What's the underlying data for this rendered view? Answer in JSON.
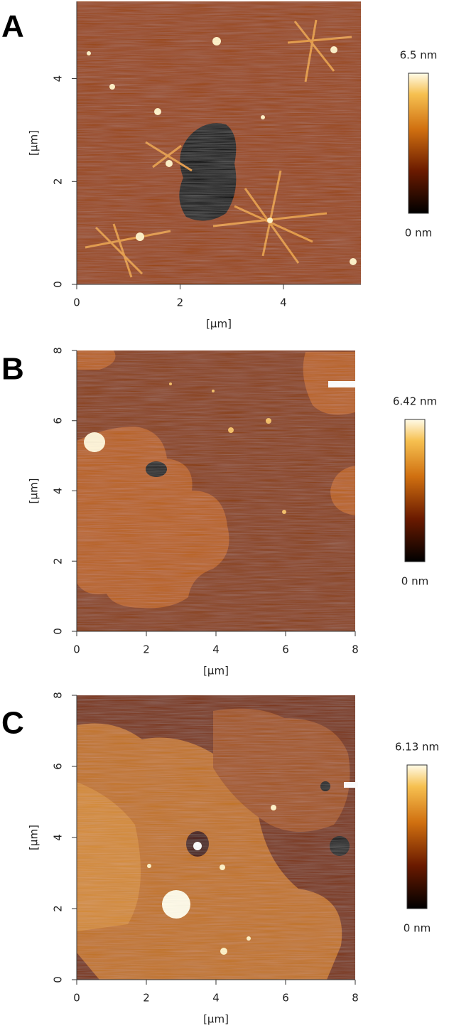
{
  "chart_data": [
    {
      "type": "heatmap",
      "panel": "A",
      "xlabel": "[µm]",
      "ylabel": "[µm]",
      "xlim": [
        0,
        5.5
      ],
      "ylim": [
        0,
        5.5
      ],
      "xticks": [
        0,
        2,
        4
      ],
      "yticks": [
        0,
        2,
        4
      ],
      "colorbar": {
        "max": "6.5 nm",
        "min": "0 nm"
      }
    },
    {
      "type": "heatmap",
      "panel": "B",
      "xlabel": "[µm]",
      "ylabel": "[µm]",
      "xlim": [
        0,
        8
      ],
      "ylim": [
        0,
        8
      ],
      "xticks": [
        0,
        2,
        4,
        6,
        8
      ],
      "yticks": [
        0,
        2,
        4,
        6,
        8
      ],
      "colorbar": {
        "max": "6.42 nm",
        "min": "0 nm"
      }
    },
    {
      "type": "heatmap",
      "panel": "C",
      "xlabel": "[µm]",
      "ylabel": "[µm]",
      "xlim": [
        0,
        8
      ],
      "ylim": [
        0,
        8
      ],
      "xticks": [
        0,
        2,
        4,
        6,
        8
      ],
      "yticks": [
        0,
        2,
        4,
        6,
        8
      ],
      "colorbar": {
        "max": "6.13 nm",
        "min": "0 nm"
      }
    }
  ]
}
